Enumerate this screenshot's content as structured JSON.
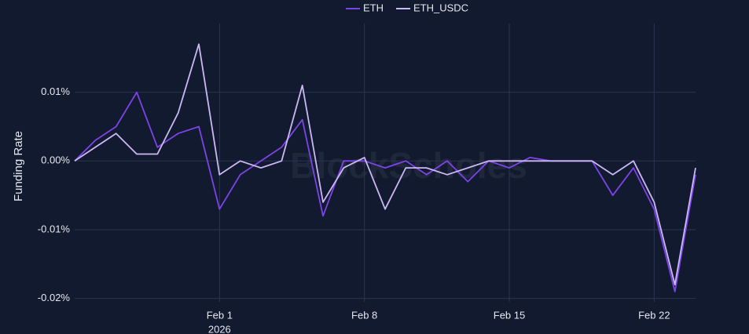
{
  "chart_data": {
    "type": "line",
    "y_label": "Funding Rate",
    "watermark": "BlockScholes",
    "x": [
      "2026-01-25",
      "2026-01-26",
      "2026-01-27",
      "2026-01-28",
      "2026-01-29",
      "2026-01-30",
      "2026-01-31",
      "2026-02-01",
      "2026-02-02",
      "2026-02-03",
      "2026-02-04",
      "2026-02-05",
      "2026-02-06",
      "2026-02-07",
      "2026-02-08",
      "2026-02-09",
      "2026-02-10",
      "2026-02-11",
      "2026-02-12",
      "2026-02-13",
      "2026-02-14",
      "2026-02-15",
      "2026-02-16",
      "2026-02-17",
      "2026-02-18",
      "2026-02-19",
      "2026-02-20",
      "2026-02-21",
      "2026-02-22",
      "2026-02-23",
      "2026-02-24"
    ],
    "series": [
      {
        "name": "ETH",
        "color": "#7c44e6",
        "values": [
          0,
          0.003,
          0.005,
          0.01,
          0.002,
          0.004,
          0.005,
          -0.007,
          -0.002,
          0,
          0.002,
          0.006,
          -0.008,
          0,
          0,
          -0.001,
          0,
          -0.002,
          0,
          -0.003,
          0,
          -0.001,
          0.0005,
          0,
          0,
          0,
          -0.005,
          -0.001,
          -0.007,
          -0.019,
          -0.002
        ]
      },
      {
        "name": "ETH_USDC",
        "color": "#cbb8f5",
        "values": [
          0,
          0.002,
          0.004,
          0.001,
          0.001,
          0.007,
          0.017,
          -0.002,
          0,
          -0.001,
          0,
          0.011,
          -0.006,
          -0.001,
          0.0005,
          -0.007,
          -0.001,
          -0.001,
          -0.002,
          -0.001,
          0,
          0,
          0,
          0,
          0,
          0,
          -0.002,
          0,
          -0.006,
          -0.018,
          -0.001
        ]
      }
    ],
    "xlim": [
      "2026-01-25",
      "2026-02-24"
    ],
    "xticks": [
      {
        "value": "2026-02-01",
        "label": "Feb 1"
      },
      {
        "value": "2026-02-08",
        "label": "Feb 8"
      },
      {
        "value": "2026-02-15",
        "label": "Feb 15"
      },
      {
        "value": "2026-02-22",
        "label": "Feb 22"
      }
    ],
    "x_year_label": "2026",
    "ylim": [
      -0.0205,
      0.02
    ],
    "yticks": [
      {
        "value": -0.02,
        "label": "-0.02%"
      },
      {
        "value": -0.01,
        "label": "-0.01%"
      },
      {
        "value": 0,
        "label": "0.00%"
      },
      {
        "value": 0.01,
        "label": "0.01%"
      }
    ],
    "grid": true,
    "legend": "top"
  }
}
